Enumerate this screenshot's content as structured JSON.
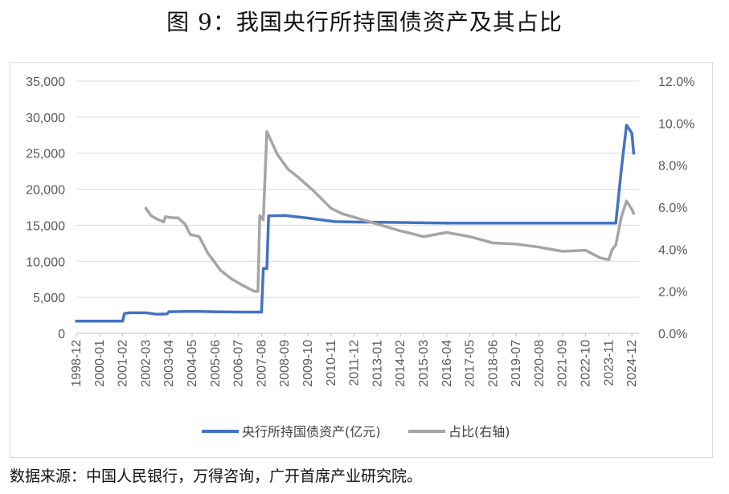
{
  "title": "图 9：我国央行所持国债资产及其占比",
  "source": "数据来源：中国人民银行，万得咨询，广开首席产业研究院。",
  "colors": {
    "holdings": "#4472C4",
    "share": "#A5A5A5",
    "grid": "#d9d9d9",
    "text": "#595959"
  },
  "chart_data": {
    "type": "line",
    "title": "",
    "y_left_ticks": [
      "0",
      "5,000",
      "10,000",
      "15,000",
      "20,000",
      "25,000",
      "30,000",
      "35,000"
    ],
    "y_left_range": [
      0,
      35000
    ],
    "y_right_ticks": [
      "0.0%",
      "2.0%",
      "4.0%",
      "6.0%",
      "8.0%",
      "10.0%",
      "12.0%"
    ],
    "y_right_range": [
      0,
      12
    ],
    "x_ticks": [
      "1998-12",
      "2000-01",
      "2001-02",
      "2002-03",
      "2003-04",
      "2004-05",
      "2005-06",
      "2006-07",
      "2007-08",
      "2008-09",
      "2009-10",
      "2010-11",
      "2011-12",
      "2013-01",
      "2014-02",
      "2015-03",
      "2016-04",
      "2017-05",
      "2018-06",
      "2019-07",
      "2020-08",
      "2021-09",
      "2022-10",
      "2023-11",
      "2024-12"
    ],
    "x_range": [
      "1998-12",
      "2025-04"
    ],
    "grid": true,
    "legend_position": "bottom",
    "series": [
      {
        "name": "央行所持国债资产(亿元)",
        "axis": "left",
        "points": [
          [
            "1998-12",
            1700
          ],
          [
            "2001-02",
            1700
          ],
          [
            "2001-03",
            2750
          ],
          [
            "2001-06",
            2850
          ],
          [
            "2002-03",
            2850
          ],
          [
            "2002-09",
            2650
          ],
          [
            "2003-03",
            2700
          ],
          [
            "2003-04",
            3000
          ],
          [
            "2004-05",
            3050
          ],
          [
            "2005-06",
            3000
          ],
          [
            "2006-07",
            2950
          ],
          [
            "2007-08",
            2950
          ],
          [
            "2007-09",
            9000
          ],
          [
            "2007-11",
            9000
          ],
          [
            "2007-12",
            16300
          ],
          [
            "2008-09",
            16350
          ],
          [
            "2009-10",
            16000
          ],
          [
            "2011-01",
            15500
          ],
          [
            "2011-12",
            15450
          ],
          [
            "2016-04",
            15300
          ],
          [
            "2023-11",
            15300
          ],
          [
            "2024-03",
            15300
          ],
          [
            "2024-06",
            22500
          ],
          [
            "2024-09",
            28900
          ],
          [
            "2024-12",
            27800
          ],
          [
            "2025-01",
            25000
          ]
        ]
      },
      {
        "name": "占比(右轴)",
        "axis": "right",
        "points": [
          [
            "2002-03",
            5.95
          ],
          [
            "2002-06",
            5.6
          ],
          [
            "2002-09",
            5.45
          ],
          [
            "2003-01",
            5.3
          ],
          [
            "2003-02",
            5.55
          ],
          [
            "2003-06",
            5.5
          ],
          [
            "2003-09",
            5.5
          ],
          [
            "2004-01",
            5.2
          ],
          [
            "2004-04",
            4.7
          ],
          [
            "2004-09",
            4.6
          ],
          [
            "2005-02",
            3.8
          ],
          [
            "2005-09",
            3.0
          ],
          [
            "2006-03",
            2.6
          ],
          [
            "2006-09",
            2.3
          ],
          [
            "2007-04",
            2.0
          ],
          [
            "2007-06",
            2.0
          ],
          [
            "2007-07",
            5.6
          ],
          [
            "2007-09",
            5.4
          ],
          [
            "2007-11",
            9.6
          ],
          [
            "2008-05",
            8.5
          ],
          [
            "2008-11",
            7.8
          ],
          [
            "2009-05",
            7.4
          ],
          [
            "2010-01",
            6.8
          ],
          [
            "2010-11",
            5.95
          ],
          [
            "2011-05",
            5.7
          ],
          [
            "2012-01",
            5.5
          ],
          [
            "2013-01",
            5.2
          ],
          [
            "2014-01",
            4.9
          ],
          [
            "2015-03",
            4.6
          ],
          [
            "2016-04",
            4.8
          ],
          [
            "2017-05",
            4.6
          ],
          [
            "2018-06",
            4.3
          ],
          [
            "2019-07",
            4.25
          ],
          [
            "2020-08",
            4.1
          ],
          [
            "2021-09",
            3.9
          ],
          [
            "2022-10",
            3.95
          ],
          [
            "2023-06",
            3.6
          ],
          [
            "2023-11",
            3.5
          ],
          [
            "2024-01",
            4.0
          ],
          [
            "2024-03",
            4.2
          ],
          [
            "2024-06",
            5.5
          ],
          [
            "2024-09",
            6.3
          ],
          [
            "2024-12",
            5.9
          ],
          [
            "2025-01",
            5.7
          ]
        ]
      }
    ]
  }
}
